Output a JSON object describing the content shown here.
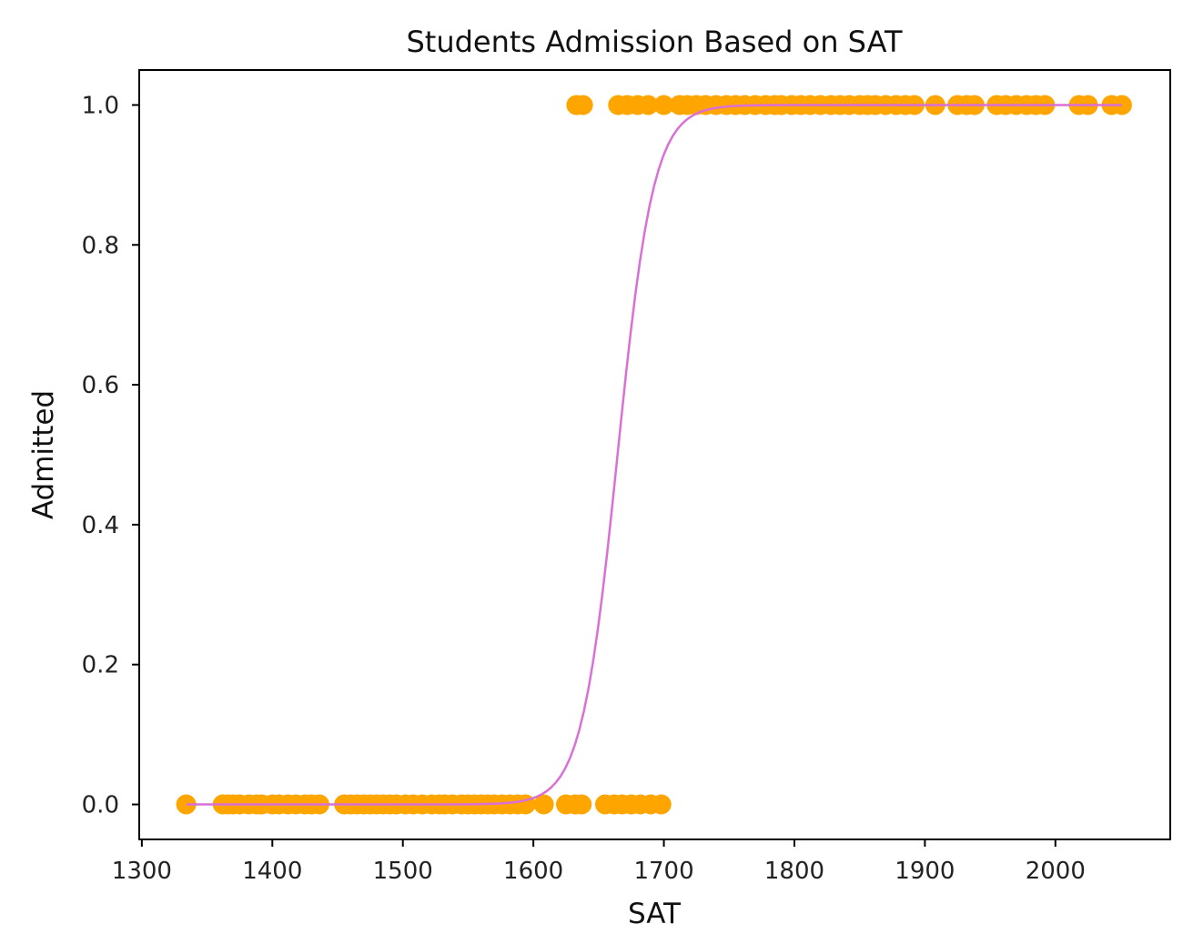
{
  "chart_data": {
    "type": "scatter",
    "title": "Students Admission Based on SAT",
    "xlabel": "SAT",
    "ylabel": "Admitted",
    "xlim": [
      1298,
      2088
    ],
    "ylim": [
      -0.05,
      1.05
    ],
    "x_ticks": [
      1300,
      1400,
      1500,
      1600,
      1700,
      1800,
      1900,
      2000
    ],
    "x_tick_labels": [
      "1300",
      "1400",
      "1500",
      "1600",
      "1700",
      "1800",
      "1900",
      "2000"
    ],
    "y_ticks": [
      0.0,
      0.2,
      0.4,
      0.6,
      0.8,
      1.0
    ],
    "y_tick_labels": [
      "0.0",
      "0.2",
      "0.4",
      "0.6",
      "0.8",
      "1.0"
    ],
    "grid": false,
    "colors": {
      "points": "#FFA500",
      "curve": "#DA70D6"
    },
    "series": [
      {
        "kind": "scatter",
        "y": 0,
        "x": [
          1334,
          1362,
          1366,
          1370,
          1375,
          1382,
          1388,
          1392,
          1400,
          1405,
          1412,
          1418,
          1425,
          1430,
          1436,
          1455,
          1460,
          1465,
          1470,
          1475,
          1480,
          1485,
          1490,
          1495,
          1502,
          1508,
          1515,
          1522,
          1528,
          1532,
          1538,
          1545,
          1550,
          1555,
          1560,
          1565,
          1570,
          1576,
          1582,
          1588,
          1594,
          1608,
          1625,
          1632,
          1637,
          1655,
          1662,
          1668,
          1675,
          1682,
          1690,
          1698
        ]
      },
      {
        "kind": "scatter",
        "y": 1,
        "x": [
          1633,
          1638,
          1665,
          1672,
          1680,
          1688,
          1700,
          1712,
          1718,
          1725,
          1732,
          1740,
          1748,
          1755,
          1762,
          1770,
          1778,
          1785,
          1790,
          1798,
          1805,
          1812,
          1820,
          1828,
          1835,
          1842,
          1850,
          1856,
          1862,
          1870,
          1878,
          1885,
          1892,
          1908,
          1925,
          1932,
          1938,
          1955,
          1962,
          1970,
          1978,
          1985,
          1992,
          2018,
          2025,
          2043,
          2051
        ]
      },
      {
        "kind": "line",
        "model": "logistic",
        "center": 1664.5,
        "slope": 0.0726,
        "x_range": [
          1334,
          2051
        ]
      }
    ]
  }
}
